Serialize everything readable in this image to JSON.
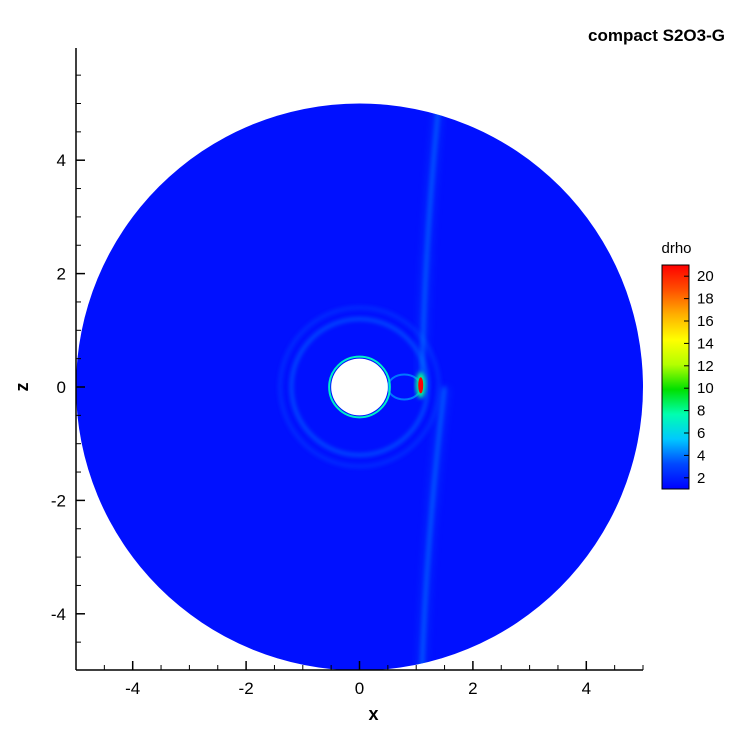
{
  "chart_data": {
    "type": "heatmap",
    "title": "compact S2O3-G",
    "xlabel": "x",
    "ylabel": "z",
    "xlim": [
      -5,
      5
    ],
    "ylim": [
      -5,
      5
    ],
    "x_ticks": [
      -4,
      -2,
      0,
      2,
      4
    ],
    "y_ticks": [
      -4,
      -2,
      0,
      2,
      4
    ],
    "domain": {
      "shape": "disk",
      "outer_radius": 5.0,
      "inner_radius": 0.5,
      "center": [
        0,
        0
      ]
    },
    "background_value": 1.5,
    "features": [
      {
        "name": "bow shock peak",
        "x": 1.08,
        "z": 0.03,
        "value": 21
      },
      {
        "name": "shock ring",
        "radius_approx": 1.2,
        "value": 4
      },
      {
        "name": "outer ring",
        "radius_approx": 1.4,
        "value": 3
      },
      {
        "name": "upstream streak",
        "x_range": [
          1.1,
          1.4
        ],
        "z_range": [
          0,
          5
        ],
        "value": 3.5
      },
      {
        "name": "downstream streak",
        "x_range": [
          1.1,
          1.5
        ],
        "z_range": [
          -5,
          0
        ],
        "value": 3.5
      }
    ],
    "colorbar": {
      "title": "drho",
      "min": 1,
      "max": 21,
      "ticks": [
        2,
        4,
        6,
        8,
        10,
        12,
        14,
        16,
        18,
        20
      ],
      "colors": [
        "#0000ff",
        "#0048ff",
        "#00c8ff",
        "#00ffb0",
        "#00e000",
        "#b4ff00",
        "#ffff00",
        "#ffb000",
        "#ff5000",
        "#ff0000"
      ]
    },
    "grid": false
  }
}
